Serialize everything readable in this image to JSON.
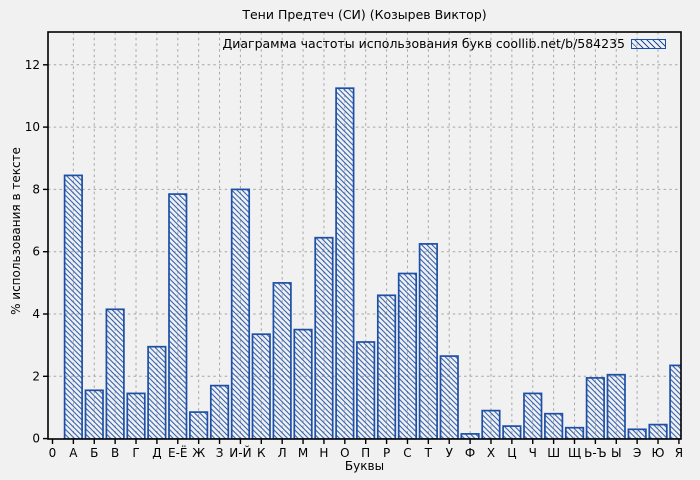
{
  "page": {
    "background": "#f1f1f1"
  },
  "chart_data": {
    "type": "bar",
    "title": "Тени Предтеч (СИ) (Козырев Виктор)",
    "legend": "Диаграмма частоты использования букв coollib.net/b/584235",
    "legend_position": "top-right",
    "legend_swatch": "blue-hatched-box",
    "xlabel": "Буквы",
    "ylabel": "% использования в тексте",
    "x_origin_tick_label": "0",
    "categories": [
      "А",
      "Б",
      "В",
      "Г",
      "Д",
      "Е-Ё",
      "Ж",
      "З",
      "И-Й",
      "К",
      "Л",
      "М",
      "Н",
      "О",
      "П",
      "Р",
      "С",
      "Т",
      "У",
      "Ф",
      "Х",
      "Ц",
      "Ч",
      "Ш",
      "Щ",
      "Ь-Ъ",
      "Ы",
      "Э",
      "Ю",
      "Я"
    ],
    "values": [
      8.45,
      1.55,
      4.15,
      1.45,
      2.95,
      7.85,
      0.85,
      1.7,
      8.0,
      3.35,
      5.0,
      3.5,
      6.45,
      11.25,
      3.1,
      4.6,
      5.3,
      6.25,
      2.65,
      0.15,
      0.9,
      0.4,
      1.45,
      0.8,
      0.35,
      1.95,
      2.05,
      0.3,
      0.45,
      2.35
    ],
    "yticks": [
      0,
      2,
      4,
      6,
      8,
      10,
      12
    ],
    "ylim": [
      0,
      13
    ],
    "grid": true,
    "grid_style": "dashed",
    "bar_style": "diagonal-hatch",
    "colors": {
      "bar_outline": "#1d4fa6",
      "bar_hatch": "#2356ab",
      "grid": "#a6a6a6",
      "axis": "#000000",
      "text": "#000000",
      "background": "#f1f1f1"
    }
  }
}
